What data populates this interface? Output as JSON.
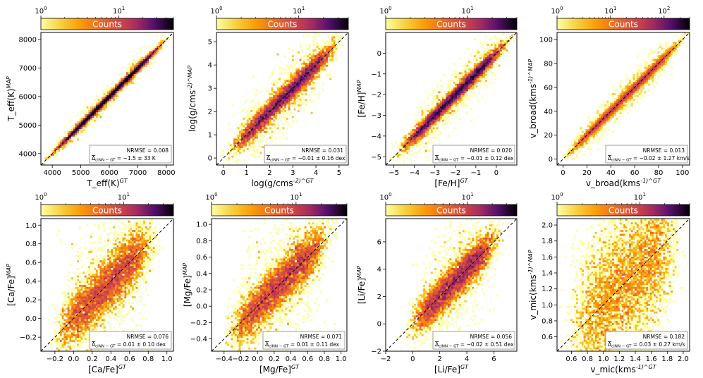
{
  "colorbar": {
    "label": "Counts",
    "colormap": "inferno_r",
    "scale": "log"
  },
  "chart_data": [
    {
      "type": "heatmap",
      "xlabel": "T_eff(K)^GT",
      "ylabel": "T_eff(K)^MAP",
      "xlim": [
        3600,
        8250
      ],
      "ylim": [
        3600,
        8250
      ],
      "xticks": [
        4000,
        5000,
        6000,
        7000,
        8000
      ],
      "xticklabels": [
        "4000",
        "5000",
        "6000",
        "7000",
        "8000"
      ],
      "yticks": [
        4000,
        5000,
        6000,
        7000,
        8000
      ],
      "yticklabels": [
        "4000",
        "5000",
        "6000",
        "7000",
        "8000"
      ],
      "colorbar_ticks": [
        {
          "v": 1,
          "t": "10"
        },
        {
          "v": 10,
          "t": "10"
        }
      ],
      "colorbar_tick_exp": [
        "0",
        "1"
      ],
      "colorbar_max": 50,
      "nrmse": "NRMSE = 0.008",
      "bias": "= −1.5 ± 33 K",
      "data_range": [
        3800,
        8000
      ],
      "scatter": 0.008
    },
    {
      "type": "heatmap",
      "xlabel": "log(g/cms^-2)^GT",
      "ylabel": "log(g/cms^-2)^MAP",
      "xlim": [
        -0.3,
        5.4
      ],
      "ylim": [
        -0.3,
        5.4
      ],
      "xticks": [
        0,
        1,
        2,
        3,
        4,
        5
      ],
      "xticklabels": [
        "0",
        "1",
        "2",
        "3",
        "4",
        "5"
      ],
      "yticks": [
        0,
        1,
        2,
        3,
        4,
        5
      ],
      "yticklabels": [
        "0",
        "1",
        "2",
        "3",
        "4",
        "5"
      ],
      "colorbar_ticks": [
        {
          "v": 1,
          "t": "10"
        },
        {
          "v": 10,
          "t": "10"
        }
      ],
      "colorbar_tick_exp": [
        "0",
        "1"
      ],
      "colorbar_max": 40,
      "nrmse": "NRMSE = 0.031",
      "bias": "= −0.01 ± 0.16 dex",
      "data_range": [
        0.1,
        5.0
      ],
      "scatter": 0.03
    },
    {
      "type": "heatmap",
      "xlabel": "[Fe/H]^GT",
      "ylabel": "[Fe/H]^MAP",
      "xlim": [
        -5.4,
        1.0
      ],
      "ylim": [
        -5.4,
        1.0
      ],
      "xticks": [
        -5,
        -4,
        -3,
        -2,
        -1,
        0
      ],
      "xticklabels": [
        "−5",
        "−4",
        "−3",
        "−2",
        "−1",
        "0"
      ],
      "yticks": [
        -5,
        -4,
        -3,
        -2,
        -1,
        0
      ],
      "yticklabels": [
        "−5",
        "−4",
        "−3",
        "−2",
        "−1",
        "0"
      ],
      "colorbar_ticks": [
        {
          "v": 1,
          "t": "10"
        },
        {
          "v": 10,
          "t": "10"
        }
      ],
      "colorbar_tick_exp": [
        "0",
        "1"
      ],
      "colorbar_max": 40,
      "nrmse": "NRMSE = 0.020",
      "bias": "= −0.01 ± 0.12 dex",
      "data_range": [
        -5.0,
        0.7
      ],
      "scatter": 0.02
    },
    {
      "type": "heatmap",
      "xlabel": "v_broad(kms^-1)^GT",
      "ylabel": "v_broad(kms^-1)^MAP",
      "xlim": [
        -5,
        106
      ],
      "ylim": [
        -5,
        106
      ],
      "xticks": [
        0,
        20,
        40,
        60,
        80,
        100
      ],
      "xticklabels": [
        "0",
        "20",
        "40",
        "60",
        "80",
        "100"
      ],
      "yticks": [
        0,
        20,
        40,
        60,
        80,
        100
      ],
      "yticklabels": [
        "0",
        "20",
        "40",
        "60",
        "80",
        "100"
      ],
      "colorbar_ticks": [
        {
          "v": 1,
          "t": "10"
        },
        {
          "v": 10,
          "t": "10"
        },
        {
          "v": 100,
          "t": "10"
        }
      ],
      "colorbar_tick_exp": [
        "0",
        "1",
        "2"
      ],
      "colorbar_max": 300,
      "nrmse": "NRMSE = 0.013",
      "bias": "= −0.02 ± 1.27 km/s",
      "data_range": [
        0,
        100
      ],
      "scatter": 0.013
    },
    {
      "type": "heatmap",
      "xlabel": "[Ca/Fe]^GT",
      "ylabel": "[Ca/Fe]^MAP",
      "xlim": [
        -0.35,
        1.07
      ],
      "ylim": [
        -0.35,
        1.07
      ],
      "xticks": [
        -0.2,
        0.0,
        0.2,
        0.4,
        0.6,
        0.8,
        1.0
      ],
      "xticklabels": [
        "−0.2",
        "0.0",
        "0.2",
        "0.4",
        "0.6",
        "0.8",
        "1.0"
      ],
      "yticks": [
        -0.2,
        0.0,
        0.2,
        0.4,
        0.6,
        0.8,
        1.0
      ],
      "yticklabels": [
        "−0.2",
        "0.0",
        "0.2",
        "0.4",
        "0.6",
        "0.8",
        "1.0"
      ],
      "colorbar_ticks": [
        {
          "v": 1,
          "t": "10"
        },
        {
          "v": 10,
          "t": "10"
        }
      ],
      "colorbar_tick_exp": [
        "0",
        "1"
      ],
      "colorbar_max": 40,
      "nrmse": "NRMSE = 0.076",
      "bias": "= 0.01 ± 0.10 dex",
      "data_range": [
        -0.25,
        0.9
      ],
      "scatter": 0.08
    },
    {
      "type": "heatmap",
      "xlabel": "[Mg/Fe]^GT",
      "ylabel": "[Mg/Fe]^MAP",
      "xlim": [
        -0.55,
        1.07
      ],
      "ylim": [
        -0.55,
        1.07
      ],
      "xticks": [
        -0.4,
        -0.2,
        0.0,
        0.2,
        0.4,
        0.6,
        0.8,
        1.0
      ],
      "xticklabels": [
        "−0.4",
        "−0.2",
        "0.0",
        "0.2",
        "0.4",
        "0.6",
        "0.8",
        "1.0"
      ],
      "yticks": [
        -0.4,
        -0.2,
        0.0,
        0.2,
        0.4,
        0.6,
        0.8,
        1.0
      ],
      "yticklabels": [
        "−0.4",
        "−0.2",
        "0.0",
        "0.2",
        "0.4",
        "0.6",
        "0.8",
        "1.0"
      ],
      "colorbar_ticks": [
        {
          "v": 1,
          "t": "10"
        },
        {
          "v": 10,
          "t": "10"
        }
      ],
      "colorbar_tick_exp": [
        "0",
        "1"
      ],
      "colorbar_max": 40,
      "nrmse": "NRMSE = 0.071",
      "bias": "= 0.01 ± 0.11 dex",
      "data_range": [
        -0.4,
        0.9
      ],
      "scatter": 0.07
    },
    {
      "type": "heatmap",
      "xlabel": "[Li/Fe]^GT",
      "ylabel": "[Li/Fe]^MAP",
      "xlim": [
        -2,
        7.7
      ],
      "ylim": [
        -2,
        7.7
      ],
      "xticks": [
        -2,
        0,
        2,
        4,
        6
      ],
      "xticklabels": [
        "−2",
        "0",
        "2",
        "4",
        "6"
      ],
      "yticks": [
        -2,
        0,
        2,
        4,
        6
      ],
      "yticklabels": [
        "−2",
        "0",
        "2",
        "4",
        "6"
      ],
      "colorbar_ticks": [
        {
          "v": 1,
          "t": "10"
        },
        {
          "v": 10,
          "t": "10"
        }
      ],
      "colorbar_tick_exp": [
        "0",
        "1"
      ],
      "colorbar_max": 40,
      "nrmse": "NRMSE = 0.056",
      "bias": "= −0.02 ± 0.51 dex",
      "data_range": [
        -0.5,
        6.5
      ],
      "scatter": 0.06
    },
    {
      "type": "heatmap",
      "xlabel": "v_mic(kms^-1)^GT",
      "ylabel": "v_mic(kms^-1)^MAP",
      "xlim": [
        0.42,
        2.08
      ],
      "ylim": [
        0.42,
        2.08
      ],
      "xticks": [
        0.6,
        0.8,
        1.0,
        1.2,
        1.4,
        1.6,
        1.8,
        2.0
      ],
      "xticklabels": [
        "0.6",
        "0.8",
        "1.0",
        "1.2",
        "1.4",
        "1.6",
        "1.8",
        "2.0"
      ],
      "yticks": [
        0.6,
        0.8,
        1.0,
        1.2,
        1.4,
        1.6,
        1.8,
        2.0
      ],
      "yticklabels": [
        "0.6",
        "0.8",
        "1.0",
        "1.2",
        "1.4",
        "1.6",
        "1.8",
        "2.0"
      ],
      "colorbar_ticks": [
        {
          "v": 1,
          "t": "10"
        },
        {
          "v": 10,
          "t": "10"
        }
      ],
      "colorbar_tick_exp": [
        "0",
        "1"
      ],
      "colorbar_max": 40,
      "nrmse": "NRMSE = 0.182",
      "bias": "= 0.03 ± 0.27 km/s",
      "data_range": [
        0.5,
        2.0
      ],
      "scatter": 0.18
    }
  ]
}
